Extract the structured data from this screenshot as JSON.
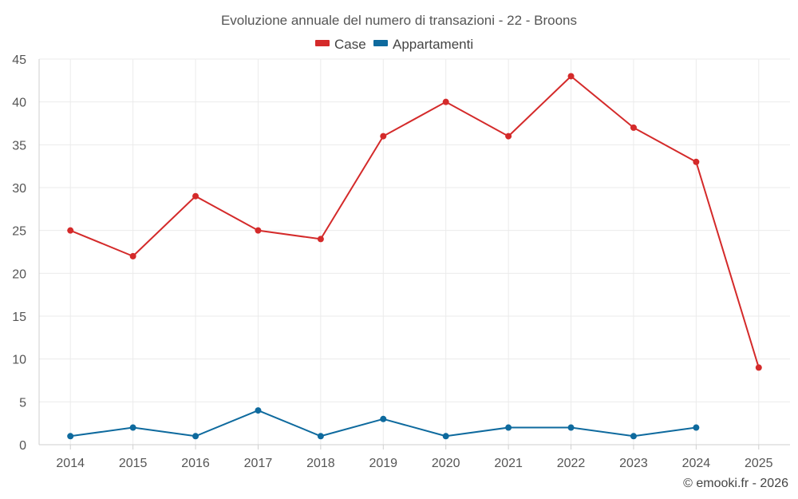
{
  "chart_data": {
    "type": "line",
    "title": "Evoluzione annuale del numero di transazioni - 22 - Broons",
    "categories": [
      "2014",
      "2015",
      "2016",
      "2017",
      "2018",
      "2019",
      "2020",
      "2021",
      "2022",
      "2023",
      "2024",
      "2025"
    ],
    "ylim": [
      0,
      45
    ],
    "yticks": [
      0,
      5,
      10,
      15,
      20,
      25,
      30,
      35,
      40,
      45
    ],
    "grid": true,
    "legend": "top-center",
    "series": [
      {
        "name": "Case",
        "color": "#d42a2a",
        "values": [
          25,
          22,
          29,
          25,
          24,
          36,
          40,
          36,
          43,
          37,
          33,
          9
        ]
      },
      {
        "name": "Appartamenti",
        "color": "#0e6a9e",
        "values": [
          1,
          2,
          1,
          4,
          1,
          3,
          1,
          2,
          2,
          1,
          2,
          null
        ]
      }
    ]
  },
  "credit": "© emooki.fr - 2026"
}
